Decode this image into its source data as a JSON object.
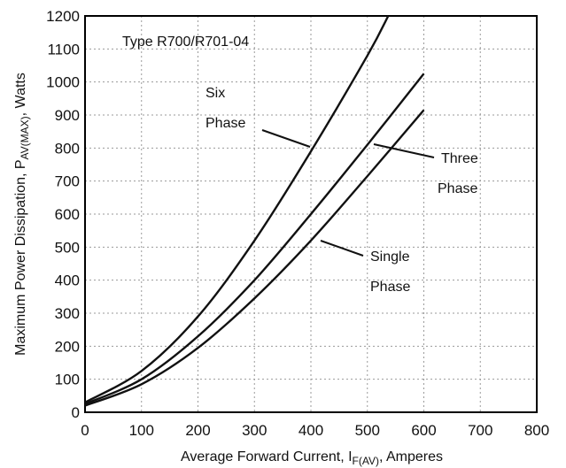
{
  "chart_data": {
    "type": "line",
    "title": "Type R700/R701-04",
    "xlabel": {
      "main": "Average Forward Current, I",
      "sub": "F(AV)",
      "suffix": ", Amperes"
    },
    "ylabel": {
      "main": "Maximum Power Dissipation, P",
      "sub": "AV(MAX)",
      "suffix": ", Watts"
    },
    "xlim": [
      0,
      800
    ],
    "ylim": [
      0,
      1200
    ],
    "xticks": [
      0,
      100,
      200,
      300,
      400,
      500,
      600,
      700,
      800
    ],
    "yticks": [
      0,
      100,
      200,
      300,
      400,
      500,
      600,
      700,
      800,
      900,
      1000,
      1100,
      1200
    ],
    "grid": true,
    "series": [
      {
        "name": "Six Phase",
        "label_lines": [
          "Six",
          "Phase"
        ],
        "x": [
          0,
          100,
          200,
          300,
          400,
          500,
          537
        ],
        "y": [
          30,
          125,
          290,
          520,
          790,
          1080,
          1200
        ]
      },
      {
        "name": "Three Phase",
        "label_lines": [
          "Three",
          "Phase"
        ],
        "x": [
          0,
          100,
          200,
          300,
          400,
          500,
          600
        ],
        "y": [
          25,
          100,
          230,
          400,
          600,
          810,
          1025
        ]
      },
      {
        "name": "Single Phase",
        "label_lines": [
          "Single",
          "Phase"
        ],
        "x": [
          0,
          100,
          200,
          300,
          400,
          500,
          600
        ],
        "y": [
          20,
          85,
          195,
          345,
          520,
          715,
          915
        ]
      }
    ]
  }
}
